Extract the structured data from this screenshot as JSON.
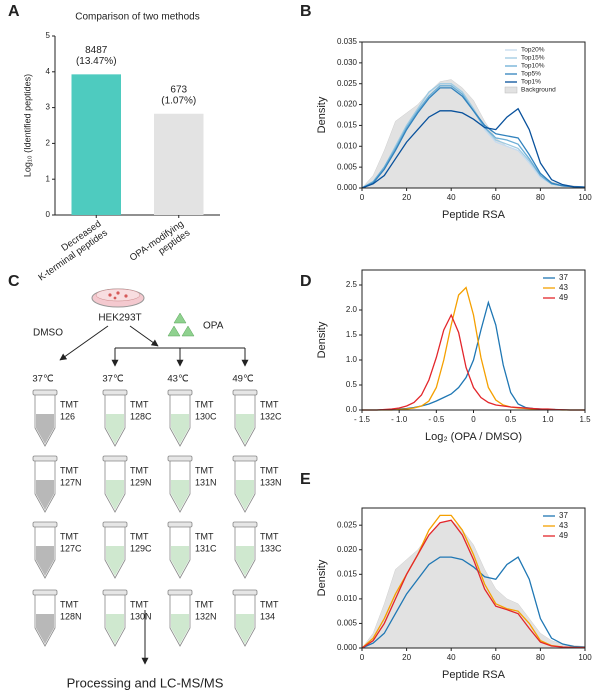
{
  "chart_data": [
    {
      "type": "bar",
      "panel_label": "A",
      "title": "Comparison of two methods",
      "ylabel": "Log₁₀ (Identified peptides)",
      "categories": [
        [
          "Decreased",
          "K-terminal peptides"
        ],
        [
          "OPA-modifying",
          "peptides"
        ]
      ],
      "values": [
        3.9288,
        2.828
      ],
      "value_labels": [
        [
          "8487",
          "(13.47%)"
        ],
        [
          "673",
          "(1.07%)"
        ]
      ],
      "colors": [
        "#4ecbbf",
        "#e3e3e3"
      ],
      "ylim": [
        0,
        5
      ],
      "yticks": [
        0,
        1,
        2,
        3,
        4,
        5
      ]
    },
    {
      "type": "line",
      "panel_label": "B",
      "xlabel": "Peptide RSA",
      "ylabel": "Density",
      "x": [
        0,
        5,
        10,
        15,
        20,
        25,
        30,
        35,
        40,
        45,
        50,
        55,
        60,
        65,
        70,
        75,
        80,
        85,
        90,
        95,
        100
      ],
      "xlim": [
        0,
        100
      ],
      "xticks": [
        0,
        20,
        40,
        60,
        80,
        100
      ],
      "ylim": [
        0,
        0.035
      ],
      "yticks": [
        {
          "value": 0,
          "label": "0.000"
        },
        {
          "value": 0.005,
          "label": "0.005"
        },
        {
          "value": 0.01,
          "label": "0.010"
        },
        {
          "value": 0.015,
          "label": "0.015"
        },
        {
          "value": 0.02,
          "label": "0.020"
        },
        {
          "value": 0.025,
          "label": "0.025"
        },
        {
          "value": 0.03,
          "label": "0.030"
        },
        {
          "value": 0.035,
          "label": "0.035"
        }
      ],
      "legend": "upper right",
      "series": [
        {
          "name": "Top20%",
          "color": "#c6dbef",
          "values": [
            0,
            0.0015,
            0.005,
            0.01,
            0.015,
            0.019,
            0.023,
            0.025,
            0.025,
            0.023,
            0.019,
            0.014,
            0.011,
            0.01,
            0.009,
            0.006,
            0.0025,
            0.001,
            0.0005,
            0.0003,
            0.0002
          ]
        },
        {
          "name": "Top15%",
          "color": "#9ecae1",
          "values": [
            0,
            0.0015,
            0.005,
            0.01,
            0.015,
            0.019,
            0.023,
            0.025,
            0.025,
            0.023,
            0.019,
            0.0145,
            0.0115,
            0.0105,
            0.0095,
            0.0065,
            0.003,
            0.001,
            0.0005,
            0.0003,
            0.0002
          ]
        },
        {
          "name": "Top10%",
          "color": "#6baed6",
          "values": [
            0,
            0.0015,
            0.005,
            0.0095,
            0.0145,
            0.0185,
            0.022,
            0.0245,
            0.0245,
            0.0225,
            0.0185,
            0.0145,
            0.012,
            0.0115,
            0.0105,
            0.007,
            0.003,
            0.001,
            0.0005,
            0.0003,
            0.0002
          ]
        },
        {
          "name": "Top5%",
          "color": "#3182bd",
          "values": [
            0,
            0.0012,
            0.0045,
            0.009,
            0.014,
            0.018,
            0.0215,
            0.024,
            0.024,
            0.022,
            0.0185,
            0.015,
            0.013,
            0.0125,
            0.012,
            0.008,
            0.0035,
            0.0012,
            0.0005,
            0.0003,
            0.0002
          ]
        },
        {
          "name": "Top1%",
          "color": "#08519c",
          "values": [
            0,
            0.001,
            0.003,
            0.007,
            0.011,
            0.014,
            0.017,
            0.0185,
            0.0185,
            0.018,
            0.0165,
            0.0145,
            0.014,
            0.017,
            0.019,
            0.014,
            0.006,
            0.002,
            0.0008,
            0.0003,
            0.0002
          ]
        },
        {
          "name": "Background",
          "color": "#e2e2e2",
          "fill": true,
          "values": [
            0,
            0.003,
            0.009,
            0.016,
            0.018,
            0.02,
            0.023,
            0.0255,
            0.026,
            0.024,
            0.021,
            0.016,
            0.012,
            0.01,
            0.009,
            0.006,
            0.003,
            0.0015,
            0.0008,
            0.0005,
            0.0003
          ]
        }
      ]
    },
    {
      "type": "line",
      "panel_label": "D",
      "xlabel": "Log₂ (OPA / DMSO)",
      "ylabel": "Density",
      "x": [
        -1.5,
        -1.4,
        -1.3,
        -1.2,
        -1.1,
        -1.0,
        -0.9,
        -0.8,
        -0.7,
        -0.6,
        -0.5,
        -0.4,
        -0.3,
        -0.2,
        -0.1,
        0,
        0.1,
        0.2,
        0.3,
        0.4,
        0.5,
        0.6,
        0.7,
        0.8,
        0.9,
        1.0,
        1.1,
        1.2,
        1.3,
        1.4,
        1.5
      ],
      "xlim": [
        -1.5,
        1.5
      ],
      "xticks": [
        {
          "value": -1.5,
          "label": "- 1.5"
        },
        {
          "value": -1.0,
          "label": "- 1.0"
        },
        {
          "value": -0.5,
          "label": "- 0.5"
        },
        0,
        0.5,
        {
          "value": 1.0,
          "label": "1.0"
        },
        1.5
      ],
      "ylim": [
        0,
        2.8
      ],
      "yticks": [
        {
          "value": 0,
          "label": "0.0"
        },
        0.5,
        {
          "value": 1.0,
          "label": "1.0"
        },
        1.5,
        {
          "value": 2.0,
          "label": "2.0"
        },
        2.5
      ],
      "legend": "upper right",
      "series": [
        {
          "name": "37",
          "color": "#1f77b4",
          "values": [
            0,
            0,
            0,
            0.005,
            0.01,
            0.02,
            0.03,
            0.05,
            0.08,
            0.12,
            0.18,
            0.25,
            0.32,
            0.45,
            0.65,
            1.0,
            1.6,
            2.15,
            1.7,
            0.9,
            0.35,
            0.12,
            0.05,
            0.03,
            0.02,
            0.01,
            0.01,
            0.005,
            0,
            0,
            0
          ]
        },
        {
          "name": "43",
          "color": "#f5a000",
          "values": [
            0,
            0,
            0,
            0,
            0,
            0.01,
            0.02,
            0.04,
            0.08,
            0.18,
            0.45,
            1.0,
            1.7,
            2.3,
            2.45,
            1.9,
            1.05,
            0.45,
            0.2,
            0.1,
            0.06,
            0.04,
            0.03,
            0.02,
            0.01,
            0.01,
            0.005,
            0,
            0,
            0,
            0
          ]
        },
        {
          "name": "49",
          "color": "#e3262b",
          "values": [
            0,
            0,
            0,
            0.01,
            0.02,
            0.04,
            0.08,
            0.15,
            0.3,
            0.6,
            1.05,
            1.6,
            1.9,
            1.55,
            0.85,
            0.45,
            0.25,
            0.15,
            0.1,
            0.08,
            0.06,
            0.05,
            0.04,
            0.03,
            0.02,
            0.02,
            0.01,
            0.005,
            0,
            0,
            0
          ]
        }
      ]
    },
    {
      "type": "line",
      "panel_label": "E",
      "xlabel": "Peptide RSA",
      "ylabel": "Density",
      "x": [
        0,
        5,
        10,
        15,
        20,
        25,
        30,
        35,
        40,
        45,
        50,
        55,
        60,
        65,
        70,
        75,
        80,
        85,
        90,
        95,
        100
      ],
      "xlim": [
        0,
        100
      ],
      "xticks": [
        0,
        20,
        40,
        60,
        80,
        100
      ],
      "ylim": [
        0,
        0.0285
      ],
      "yticks": [
        {
          "value": 0,
          "label": "0.000"
        },
        {
          "value": 0.005,
          "label": "0.005"
        },
        {
          "value": 0.01,
          "label": "0.010"
        },
        {
          "value": 0.015,
          "label": "0.015"
        },
        {
          "value": 0.02,
          "label": "0.020"
        },
        {
          "value": 0.025,
          "label": "0.025"
        }
      ],
      "legend": "upper right",
      "background": {
        "color": "#e2e2e2",
        "values": [
          0,
          0.003,
          0.009,
          0.016,
          0.018,
          0.02,
          0.023,
          0.0255,
          0.026,
          0.024,
          0.021,
          0.016,
          0.012,
          0.01,
          0.009,
          0.006,
          0.003,
          0.0015,
          0.0008,
          0.0005,
          0.0003
        ]
      },
      "series": [
        {
          "name": "37",
          "color": "#1f77b4",
          "values": [
            0,
            0.001,
            0.003,
            0.007,
            0.011,
            0.014,
            0.017,
            0.0185,
            0.0185,
            0.018,
            0.0165,
            0.0145,
            0.014,
            0.017,
            0.0185,
            0.014,
            0.006,
            0.002,
            0.0008,
            0.0003,
            0.0002
          ]
        },
        {
          "name": "43",
          "color": "#f5a000",
          "values": [
            0,
            0.002,
            0.006,
            0.011,
            0.015,
            0.019,
            0.024,
            0.027,
            0.027,
            0.024,
            0.019,
            0.013,
            0.009,
            0.008,
            0.0075,
            0.005,
            0.0015,
            0.0005,
            0.0002,
            0.0001,
            0.0001
          ]
        },
        {
          "name": "49",
          "color": "#e3262b",
          "values": [
            0,
            0.0015,
            0.005,
            0.01,
            0.015,
            0.019,
            0.023,
            0.0255,
            0.026,
            0.023,
            0.018,
            0.012,
            0.0085,
            0.0078,
            0.007,
            0.004,
            0.0012,
            0.0004,
            0.0002,
            0.0001,
            0.0001
          ]
        }
      ]
    }
  ],
  "diagram": {
    "panel_label": "C",
    "cell_line": "HEK293T",
    "control": "DMSO",
    "treatment": "OPA",
    "temperatures": [
      "37℃",
      "37℃",
      "43℃",
      "49℃"
    ],
    "column_fill": [
      "#b8b8b8",
      "#cfe8cf",
      "#cfe8cf",
      "#cfe8cf"
    ],
    "tubes": [
      [
        {
          "label": "TMT",
          "channel": "126",
          "color": "#3fb5a8"
        },
        {
          "label": "TMT",
          "channel": "128C",
          "color": "#d62728"
        },
        {
          "label": "TMT",
          "channel": "130C",
          "color": "#c5d14a"
        },
        {
          "label": "TMT",
          "channel": "132C",
          "color": "#8fd18f"
        }
      ],
      [
        {
          "label": "TMT",
          "channel": "127N",
          "color": "#1f6e7a"
        },
        {
          "label": "TMT",
          "channel": "129N",
          "color": "#f08070"
        },
        {
          "label": "TMT",
          "channel": "131N",
          "color": "#4f8a35"
        },
        {
          "label": "TMT",
          "channel": "133N",
          "color": "#5a1a1a"
        }
      ],
      [
        {
          "label": "TMT",
          "channel": "127C",
          "color": "#4fc3d0"
        },
        {
          "label": "TMT",
          "channel": "129C",
          "color": "#1f3a6e"
        },
        {
          "label": "TMT",
          "channel": "131C",
          "color": "#b8a0d8"
        },
        {
          "label": "TMT",
          "channel": "133C",
          "color": "#dccf3a"
        }
      ],
      [
        {
          "label": "TMT",
          "channel": "128N",
          "color": "#e03030"
        },
        {
          "label": "TMT",
          "channel": "130N",
          "color": "#6a3030"
        },
        {
          "label": "TMT",
          "channel": "132N",
          "color": "#f08020"
        },
        {
          "label": "TMT",
          "channel": "134",
          "color": "#111111"
        }
      ]
    ],
    "footer": "Processing and LC-MS/MS"
  }
}
